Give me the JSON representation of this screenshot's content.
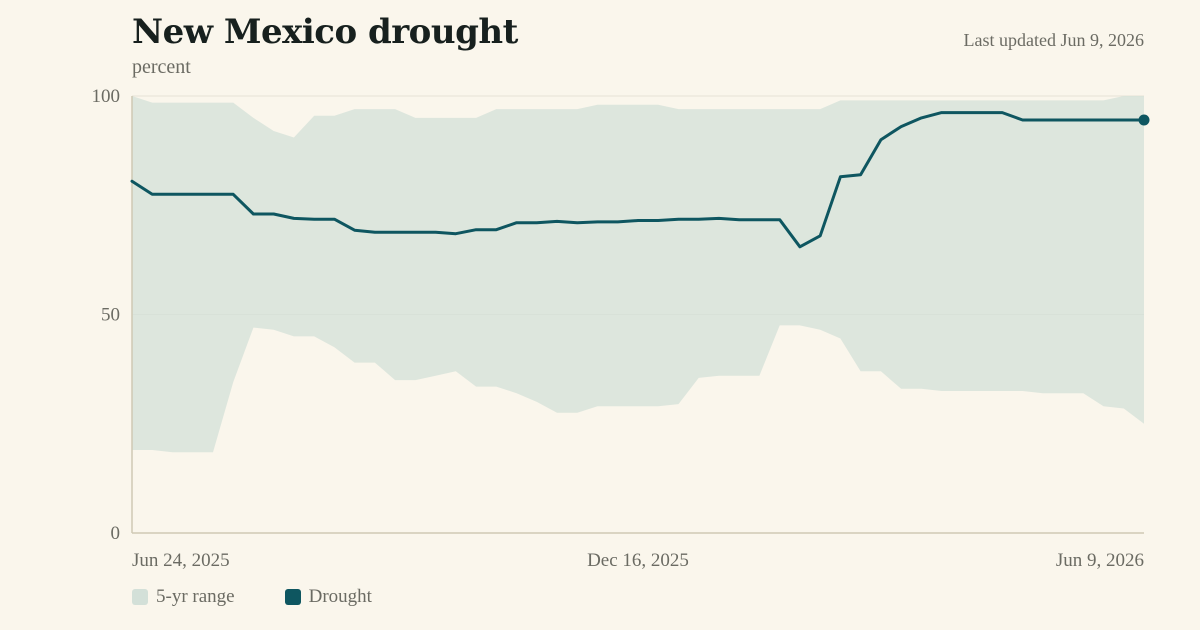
{
  "header": {
    "title": "New Mexico drought",
    "subtitle": "percent",
    "updated": "Last updated Jun 9, 2026"
  },
  "legend": [
    {
      "label": "5-yr range",
      "color": "#d3e0d8"
    },
    {
      "label": "Drought",
      "color": "#0e5660"
    }
  ],
  "chart_data": {
    "type": "area",
    "title": "New Mexico drought",
    "ylabel": "percent",
    "ylim": [
      0,
      100
    ],
    "yticks": [
      0,
      50,
      100
    ],
    "xlim": [
      "2025-06-24",
      "2026-06-09"
    ],
    "xticks": [
      {
        "date": "2025-06-24",
        "label": "Jun 24, 2025"
      },
      {
        "date": "2025-12-16",
        "label": "Dec 16, 2025"
      },
      {
        "date": "2026-06-09",
        "label": "Jun 9, 2026"
      }
    ],
    "grid": true,
    "colors": {
      "range": "#d3e0d8",
      "line": "#0e5660"
    },
    "x": [
      "2025-06-24",
      "2025-07-01",
      "2025-07-08",
      "2025-07-15",
      "2025-07-22",
      "2025-07-29",
      "2025-08-05",
      "2025-08-12",
      "2025-08-19",
      "2025-08-26",
      "2025-09-02",
      "2025-09-09",
      "2025-09-16",
      "2025-09-23",
      "2025-09-30",
      "2025-10-07",
      "2025-10-14",
      "2025-10-21",
      "2025-10-28",
      "2025-11-04",
      "2025-11-11",
      "2025-11-18",
      "2025-11-25",
      "2025-12-02",
      "2025-12-09",
      "2025-12-16",
      "2025-12-23",
      "2025-12-30",
      "2026-01-06",
      "2026-01-13",
      "2026-01-20",
      "2026-01-27",
      "2026-02-03",
      "2026-02-10",
      "2026-02-17",
      "2026-02-24",
      "2026-03-03",
      "2026-03-10",
      "2026-03-17",
      "2026-03-24",
      "2026-03-31",
      "2026-04-07",
      "2026-04-14",
      "2026-04-21",
      "2026-04-28",
      "2026-05-05",
      "2026-05-12",
      "2026-05-19",
      "2026-05-26",
      "2026-06-02",
      "2026-06-09"
    ],
    "series": [
      {
        "name": "5-yr range",
        "kind": "range",
        "high": [
          100,
          98.5,
          98.5,
          98.5,
          98.5,
          98.5,
          95,
          92,
          90.5,
          95.5,
          95.5,
          97,
          97,
          97,
          95,
          95,
          95,
          95,
          97,
          97,
          97,
          97,
          97,
          98,
          98,
          98,
          98,
          97,
          97,
          97,
          97,
          97,
          97,
          97,
          97,
          99,
          99,
          99,
          99,
          99,
          99,
          99,
          99,
          99,
          99,
          99,
          99,
          99,
          99,
          100,
          100
        ],
        "low": [
          19,
          19,
          18.5,
          18.5,
          18.5,
          34.5,
          47,
          46.5,
          45,
          45,
          42.5,
          39,
          39,
          35,
          35,
          36,
          37,
          33.5,
          33.5,
          32,
          30,
          27.5,
          27.5,
          29,
          29,
          29,
          29,
          29.5,
          35.5,
          36,
          36,
          36,
          47.5,
          47.5,
          46.5,
          44.5,
          37,
          37,
          33,
          33,
          32.5,
          32.5,
          32.5,
          32.5,
          32.5,
          32,
          32,
          32,
          29,
          28.5,
          25
        ]
      },
      {
        "name": "Drought",
        "kind": "line",
        "values": [
          80.5,
          77.5,
          77.5,
          77.5,
          77.5,
          77.5,
          73,
          73,
          72,
          71.8,
          71.8,
          69.3,
          68.8,
          68.8,
          68.8,
          68.8,
          68.5,
          69.4,
          69.4,
          71,
          71,
          71.3,
          71,
          71.2,
          71.2,
          71.5,
          71.5,
          71.8,
          71.8,
          72,
          71.7,
          71.7,
          71.7,
          65.5,
          68,
          81.5,
          82,
          90,
          93,
          95,
          96.2,
          96.2,
          96.2,
          96.2,
          94.5,
          94.5,
          94.5,
          94.5,
          94.5,
          94.5,
          94.5
        ]
      }
    ]
  }
}
